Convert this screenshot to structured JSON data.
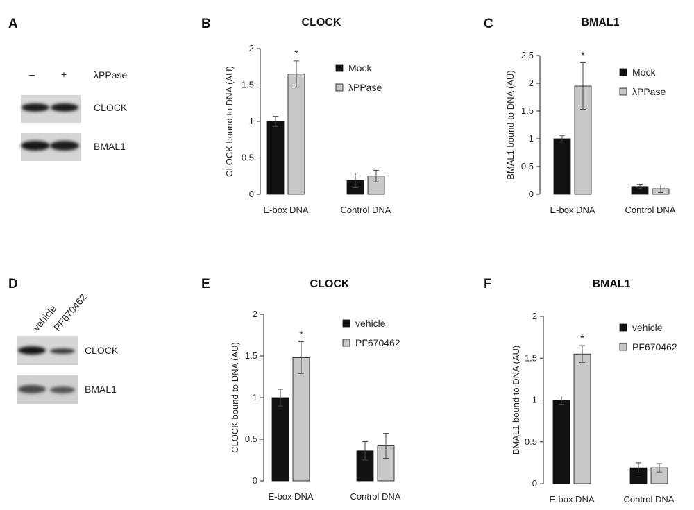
{
  "panels": {
    "A": {
      "letter": "A",
      "lanes": [
        "–",
        "+"
      ],
      "treatment": "λPPase",
      "bands": [
        "CLOCK",
        "BMAL1"
      ]
    },
    "D": {
      "letter": "D",
      "lanes": [
        "vehicle",
        "PF670462"
      ],
      "bands": [
        "CLOCK",
        "BMAL1"
      ]
    }
  },
  "chart_data": [
    {
      "id": "B",
      "letter": "B",
      "type": "bar",
      "title": "CLOCK",
      "xlabel": "",
      "ylabel": "CLOCK bound to DNA (AU)",
      "categories": [
        "E-box DNA",
        "Control DNA"
      ],
      "series": [
        {
          "name": "Mock",
          "color": "#111111",
          "values": [
            1.0,
            0.19
          ],
          "errors": [
            0.07,
            0.1
          ]
        },
        {
          "name": "λPPase",
          "color": "#c8c8c8",
          "values": [
            1.65,
            0.25
          ],
          "errors": [
            0.18,
            0.08
          ]
        }
      ],
      "ylim": [
        0,
        2
      ],
      "yticks": [
        "0",
        "0.5",
        "1",
        "1.5",
        "2"
      ],
      "significance": [
        {
          "category": 0,
          "series": 1,
          "label": "*"
        }
      ],
      "legend": "top-right",
      "grid": false
    },
    {
      "id": "C",
      "letter": "C",
      "type": "bar",
      "title": "BMAL1",
      "xlabel": "",
      "ylabel": "BMAL1 bound to DNA (AU)",
      "categories": [
        "E-box DNA",
        "Control DNA"
      ],
      "series": [
        {
          "name": "Mock",
          "color": "#111111",
          "values": [
            1.0,
            0.14
          ],
          "errors": [
            0.06,
            0.04
          ]
        },
        {
          "name": "λPPase",
          "color": "#c8c8c8",
          "values": [
            1.95,
            0.1
          ],
          "errors": [
            0.42,
            0.07
          ]
        }
      ],
      "ylim": [
        0,
        2.5
      ],
      "yticks": [
        "0",
        "0.5",
        "1",
        "1.5",
        "2",
        "2.5"
      ],
      "significance": [
        {
          "category": 0,
          "series": 1,
          "label": "*"
        }
      ],
      "legend": "top-right",
      "grid": false
    },
    {
      "id": "E",
      "letter": "E",
      "type": "bar",
      "title": "CLOCK",
      "xlabel": "",
      "ylabel": "CLOCK bound to DNA (AU)",
      "categories": [
        "E-box DNA",
        "Control DNA"
      ],
      "series": [
        {
          "name": "vehicle",
          "color": "#111111",
          "values": [
            1.0,
            0.36
          ],
          "errors": [
            0.1,
            0.11
          ]
        },
        {
          "name": "PF670462",
          "color": "#c8c8c8",
          "values": [
            1.48,
            0.42
          ],
          "errors": [
            0.19,
            0.15
          ]
        }
      ],
      "ylim": [
        0,
        2
      ],
      "yticks": [
        "0",
        "0.5",
        "1",
        "1.5",
        "2"
      ],
      "significance": [
        {
          "category": 0,
          "series": 1,
          "label": "*"
        }
      ],
      "legend": "top-right",
      "grid": false
    },
    {
      "id": "F",
      "letter": "F",
      "type": "bar",
      "title": "BMAL1",
      "xlabel": "",
      "ylabel": "BMAL1 bound to DNA (AU)",
      "categories": [
        "E-box DNA",
        "Control DNA"
      ],
      "series": [
        {
          "name": "vehicle",
          "color": "#111111",
          "values": [
            1.0,
            0.19
          ],
          "errors": [
            0.05,
            0.06
          ]
        },
        {
          "name": "PF670462",
          "color": "#c8c8c8",
          "values": [
            1.55,
            0.19
          ],
          "errors": [
            0.1,
            0.05
          ]
        }
      ],
      "ylim": [
        0,
        2
      ],
      "yticks": [
        "0",
        "0.5",
        "1",
        "1.5",
        "2"
      ],
      "significance": [
        {
          "category": 0,
          "series": 1,
          "label": "*"
        }
      ],
      "legend": "top-right",
      "grid": false
    }
  ]
}
